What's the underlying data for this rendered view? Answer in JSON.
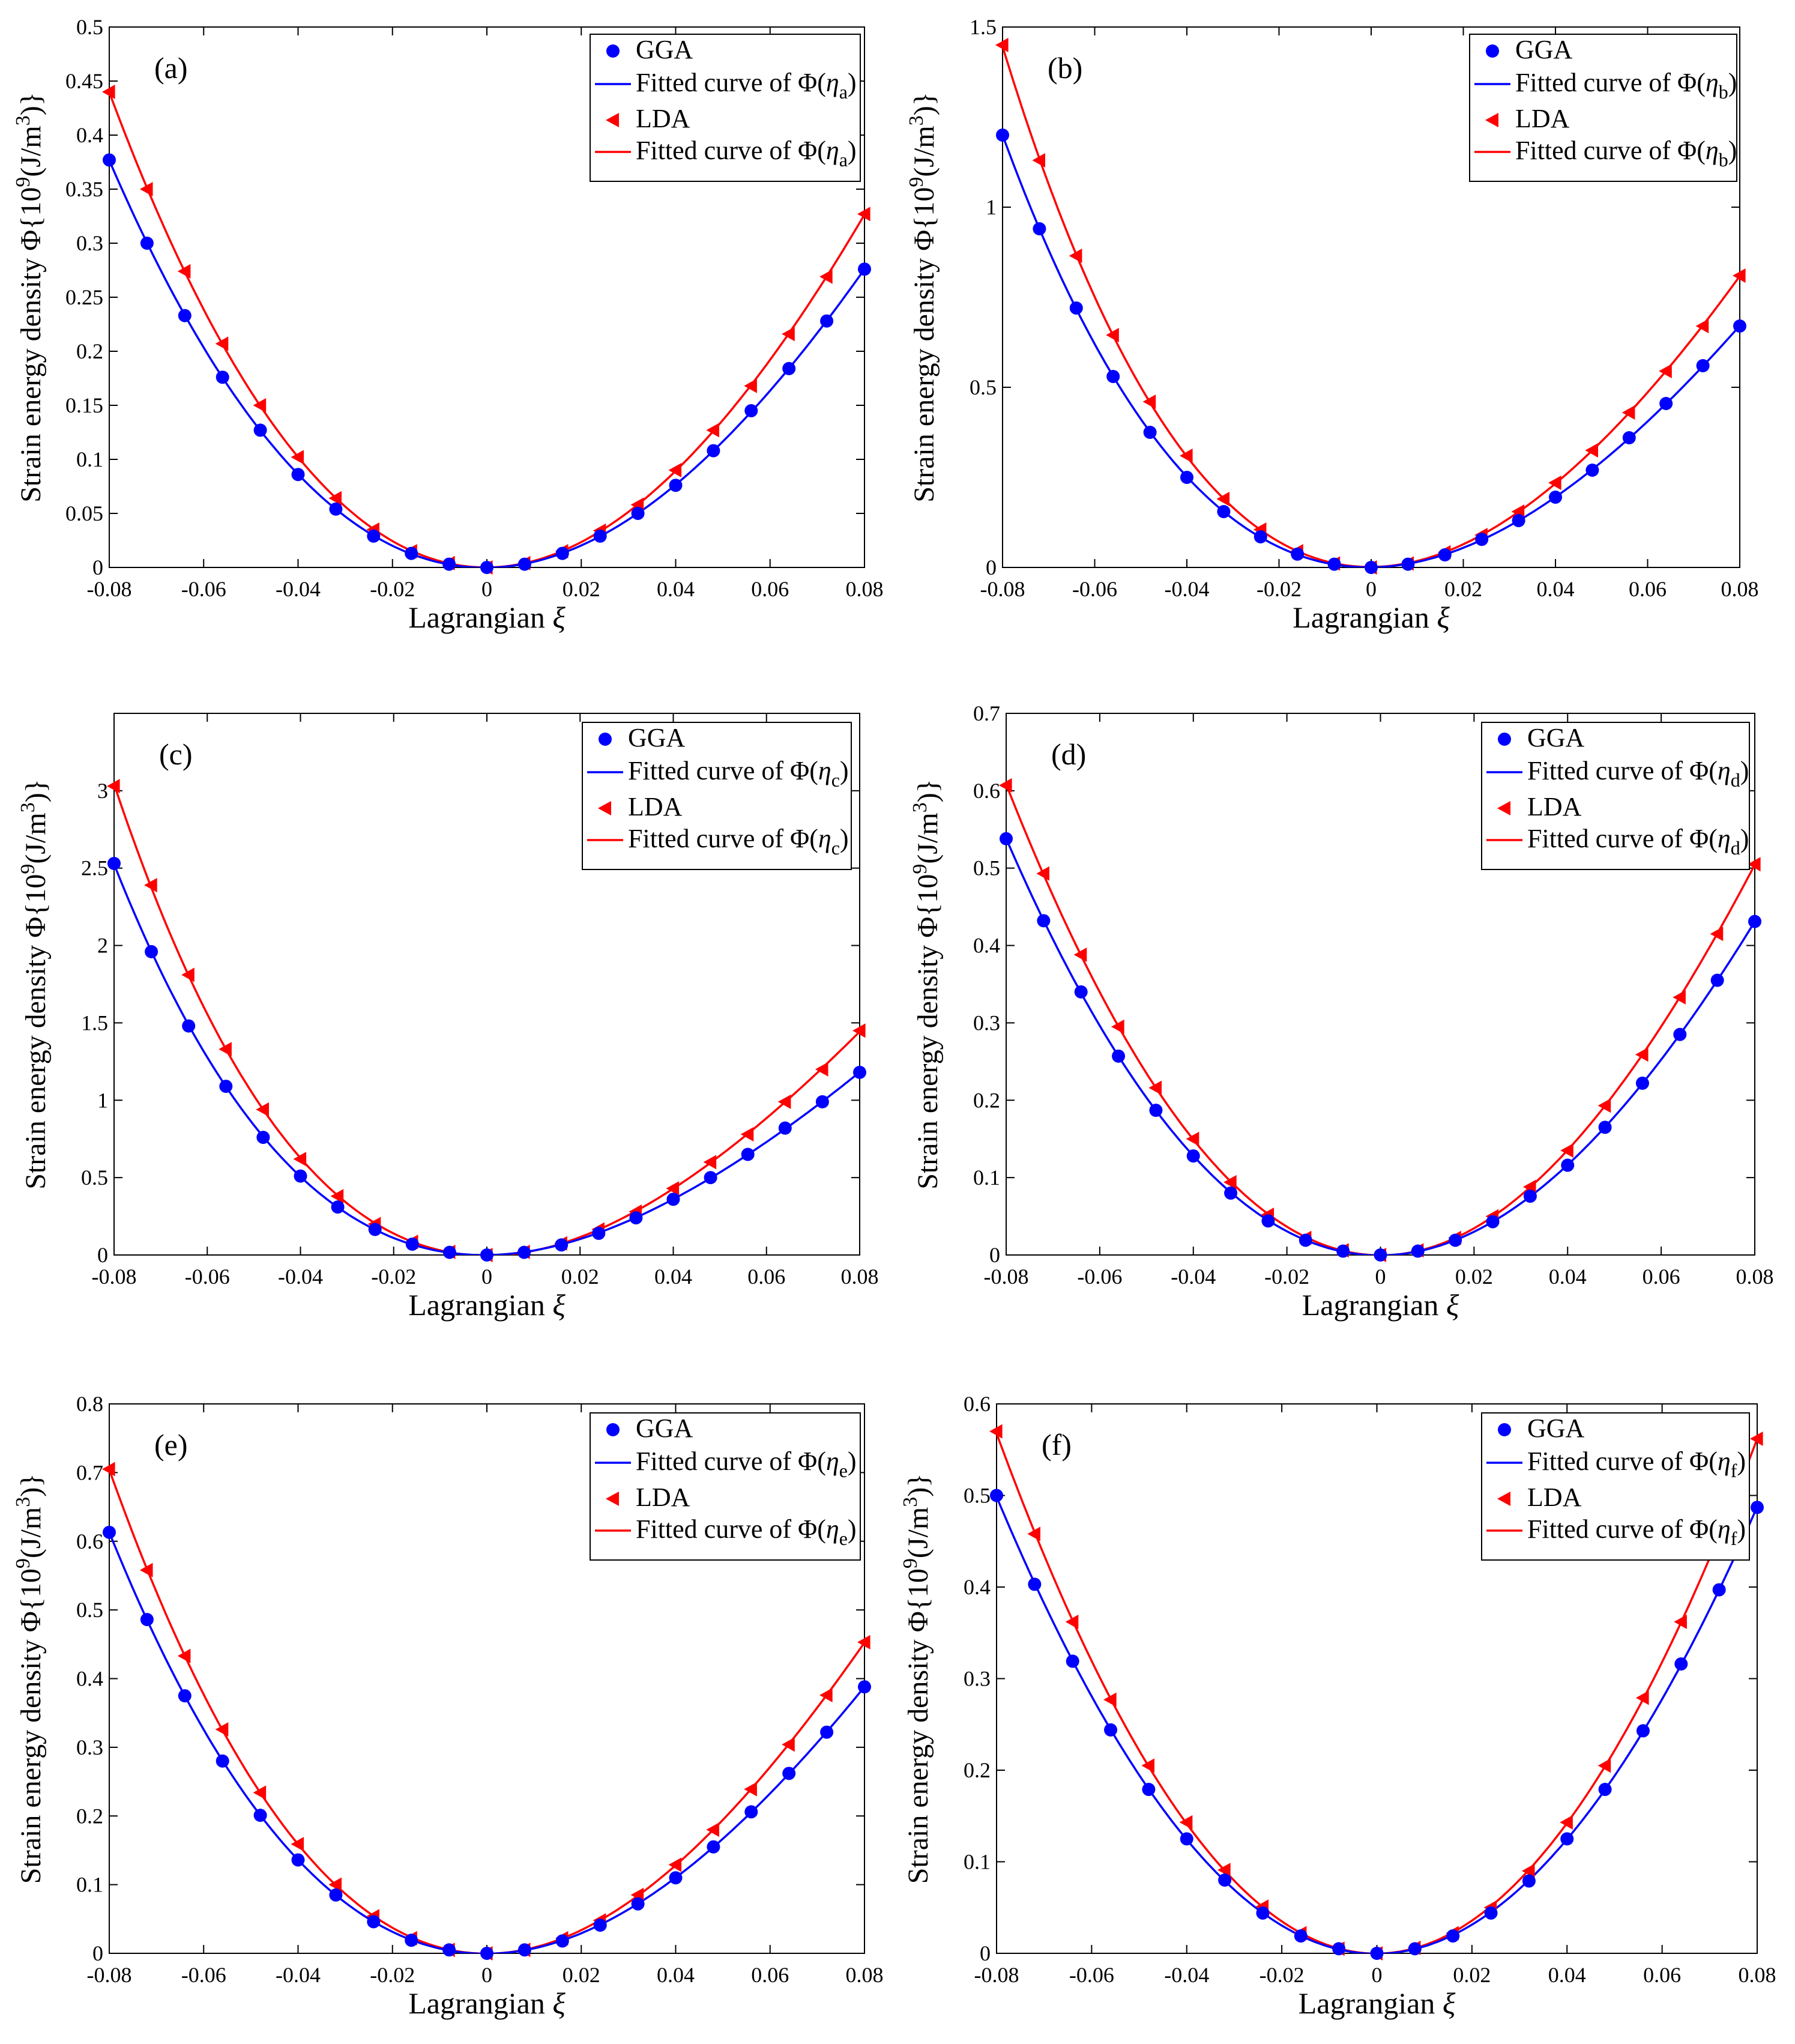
{
  "colors": {
    "gga": "#0000ff",
    "lda": "#ff0000",
    "axis": "#000000"
  },
  "icons": {
    "gga_marker": "filled-circle-marker",
    "lda_marker": "left-triangle-marker"
  },
  "chart_data": [
    {
      "type": "line",
      "id": "a",
      "panel_label": "(a)",
      "subscript": "a",
      "xlabel_main": "Lagrangian ",
      "xlabel_sym": "ξ",
      "ylabel_prefix": "Strain energy density ",
      "ylabel_unit_open": "Φ{10",
      "ylabel_exp": "9",
      "ylabel_unit_mid": "(J/m",
      "ylabel_exp2": "3",
      "ylabel_unit_close": ")}",
      "legend": {
        "gga": "GGA",
        "fit_prefix": "Fitted curve of Φ(",
        "fit_eta": "η",
        "fit_close": ")",
        "lda": "LDA"
      },
      "xlim": [
        -0.08,
        0.08
      ],
      "ylim": [
        0,
        0.5
      ],
      "xticks": [
        -0.08,
        -0.06,
        -0.04,
        -0.02,
        0,
        0.02,
        0.04,
        0.06,
        0.08
      ],
      "xtick_labels": [
        "-0.08",
        "-0.06",
        "-0.04",
        "-0.02",
        "0",
        "0.02",
        "0.04",
        "0.06",
        "0.08"
      ],
      "yticks": [
        0,
        0.05,
        0.1,
        0.15,
        0.2,
        0.25,
        0.3,
        0.35,
        0.4,
        0.45,
        0.5
      ],
      "ytick_labels": [
        "0",
        "0.05",
        "0.1",
        "0.15",
        "0.2",
        "0.25",
        "0.3",
        "0.35",
        "0.4",
        "0.45",
        "0.5"
      ],
      "x": [
        -0.08,
        -0.072,
        -0.064,
        -0.056,
        -0.048,
        -0.04,
        -0.032,
        -0.024,
        -0.016,
        -0.008,
        0,
        0.008,
        0.016,
        0.024,
        0.032,
        0.04,
        0.048,
        0.056,
        0.064,
        0.072,
        0.08
      ],
      "series": [
        {
          "name": "GGA",
          "values": [
            0.377,
            0.3,
            0.233,
            0.176,
            0.127,
            0.086,
            0.054,
            0.029,
            0.013,
            0.003,
            0,
            0.003,
            0.013,
            0.029,
            0.05,
            0.076,
            0.108,
            0.145,
            0.184,
            0.228,
            0.276
          ]
        },
        {
          "name": "LDA",
          "values": [
            0.44,
            0.35,
            0.274,
            0.207,
            0.15,
            0.102,
            0.064,
            0.035,
            0.015,
            0.004,
            0,
            0.004,
            0.015,
            0.034,
            0.058,
            0.09,
            0.127,
            0.168,
            0.216,
            0.269,
            0.327
          ]
        }
      ]
    },
    {
      "type": "line",
      "id": "b",
      "panel_label": "(b)",
      "subscript": "b",
      "xlabel_main": "Lagrangian ",
      "xlabel_sym": "ξ",
      "ylabel_prefix": "Strain energy density ",
      "ylabel_unit_open": "Φ{10",
      "ylabel_exp": "9",
      "ylabel_unit_mid": "(J/m",
      "ylabel_exp2": "3",
      "ylabel_unit_close": ")}",
      "legend": {
        "gga": "GGA",
        "fit_prefix": "Fitted curve of Φ(",
        "fit_eta": "η",
        "fit_close": ")",
        "lda": "LDA"
      },
      "xlim": [
        -0.08,
        0.08
      ],
      "ylim": [
        0,
        1.5
      ],
      "xticks": [
        -0.08,
        -0.06,
        -0.04,
        -0.02,
        0,
        0.02,
        0.04,
        0.06,
        0.08
      ],
      "xtick_labels": [
        "-0.08",
        "-0.06",
        "-0.04",
        "-0.02",
        "0",
        "0.02",
        "0.04",
        "0.06",
        "0.08"
      ],
      "yticks": [
        0,
        0.5,
        1,
        1.5
      ],
      "ytick_labels": [
        "0",
        "0.5",
        "1",
        "1.5"
      ],
      "x": [
        -0.08,
        -0.072,
        -0.064,
        -0.056,
        -0.048,
        -0.04,
        -0.032,
        -0.024,
        -0.016,
        -0.008,
        0,
        0.008,
        0.016,
        0.024,
        0.032,
        0.04,
        0.048,
        0.056,
        0.064,
        0.072,
        0.08
      ],
      "series": [
        {
          "name": "GGA",
          "values": [
            1.2,
            0.94,
            0.72,
            0.53,
            0.375,
            0.25,
            0.155,
            0.085,
            0.037,
            0.009,
            0,
            0.009,
            0.035,
            0.078,
            0.13,
            0.195,
            0.27,
            0.36,
            0.455,
            0.56,
            0.67
          ]
        },
        {
          "name": "LDA",
          "values": [
            1.45,
            1.13,
            0.865,
            0.645,
            0.46,
            0.31,
            0.19,
            0.105,
            0.045,
            0.011,
            0,
            0.011,
            0.042,
            0.09,
            0.155,
            0.235,
            0.325,
            0.43,
            0.545,
            0.67,
            0.81
          ]
        }
      ]
    },
    {
      "type": "line",
      "id": "c",
      "panel_label": "(c)",
      "subscript": "c",
      "xlabel_main": "Lagrangian ",
      "xlabel_sym": "ξ",
      "ylabel_prefix": "Strain energy density ",
      "ylabel_unit_open": "Φ{10",
      "ylabel_exp": "9",
      "ylabel_unit_mid": "(J/m",
      "ylabel_exp2": "3",
      "ylabel_unit_close": ")}",
      "legend": {
        "gga": "GGA",
        "fit_prefix": "Fitted curve of Φ(",
        "fit_eta": "η",
        "fit_close": ")",
        "lda": "LDA"
      },
      "xlim": [
        -0.08,
        0.08
      ],
      "ylim": [
        0,
        3.5
      ],
      "xticks": [
        -0.08,
        -0.06,
        -0.04,
        -0.02,
        0,
        0.02,
        0.04,
        0.06,
        0.08
      ],
      "xtick_labels": [
        "-0.08",
        "-0.06",
        "-0.04",
        "-0.02",
        "0",
        "0.02",
        "0.04",
        "0.06",
        "0.08"
      ],
      "yticks": [
        0,
        0.5,
        1,
        1.5,
        2,
        2.5,
        3
      ],
      "ytick_labels": [
        "0",
        "0.5",
        "1",
        "1.5",
        "2",
        "2.5",
        "3"
      ],
      "x": [
        -0.08,
        -0.072,
        -0.064,
        -0.056,
        -0.048,
        -0.04,
        -0.032,
        -0.024,
        -0.016,
        -0.008,
        0,
        0.008,
        0.016,
        0.024,
        0.032,
        0.04,
        0.048,
        0.056,
        0.064,
        0.072,
        0.08
      ],
      "series": [
        {
          "name": "GGA",
          "values": [
            2.53,
            1.96,
            1.48,
            1.09,
            0.76,
            0.51,
            0.31,
            0.165,
            0.07,
            0.017,
            0,
            0.017,
            0.065,
            0.14,
            0.24,
            0.36,
            0.5,
            0.65,
            0.82,
            0.99,
            1.18
          ]
        },
        {
          "name": "LDA",
          "values": [
            3.03,
            2.39,
            1.81,
            1.33,
            0.94,
            0.62,
            0.38,
            0.2,
            0.085,
            0.02,
            0,
            0.02,
            0.075,
            0.165,
            0.28,
            0.43,
            0.6,
            0.78,
            0.99,
            1.2,
            1.45
          ]
        }
      ]
    },
    {
      "type": "line",
      "id": "d",
      "panel_label": "(d)",
      "subscript": "d",
      "xlabel_main": "Lagrangian ",
      "xlabel_sym": "ξ",
      "ylabel_prefix": "Strain energy density ",
      "ylabel_unit_open": "Φ{10",
      "ylabel_exp": "9",
      "ylabel_unit_mid": "(J/m",
      "ylabel_exp2": "3",
      "ylabel_unit_close": ")}",
      "legend": {
        "gga": "GGA",
        "fit_prefix": "Fitted curve of Φ(",
        "fit_eta": "η",
        "fit_close": ")",
        "lda": "LDA"
      },
      "xlim": [
        -0.08,
        0.08
      ],
      "ylim": [
        0,
        0.7
      ],
      "xticks": [
        -0.08,
        -0.06,
        -0.04,
        -0.02,
        0,
        0.02,
        0.04,
        0.06,
        0.08
      ],
      "xtick_labels": [
        "-0.08",
        "-0.06",
        "-0.04",
        "-0.02",
        "0",
        "0.02",
        "0.04",
        "0.06",
        "0.08"
      ],
      "yticks": [
        0,
        0.1,
        0.2,
        0.3,
        0.4,
        0.5,
        0.6,
        0.7
      ],
      "ytick_labels": [
        "0",
        "0.1",
        "0.2",
        "0.3",
        "0.4",
        "0.5",
        "0.6",
        "0.7"
      ],
      "x": [
        -0.08,
        -0.072,
        -0.064,
        -0.056,
        -0.048,
        -0.04,
        -0.032,
        -0.024,
        -0.016,
        -0.008,
        0,
        0.008,
        0.016,
        0.024,
        0.032,
        0.04,
        0.048,
        0.056,
        0.064,
        0.072,
        0.08
      ],
      "series": [
        {
          "name": "GGA",
          "values": [
            0.538,
            0.432,
            0.34,
            0.257,
            0.187,
            0.128,
            0.08,
            0.044,
            0.019,
            0.005,
            0,
            0.005,
            0.019,
            0.043,
            0.076,
            0.116,
            0.165,
            0.222,
            0.285,
            0.355,
            0.431
          ]
        },
        {
          "name": "LDA",
          "values": [
            0.607,
            0.493,
            0.388,
            0.295,
            0.216,
            0.15,
            0.094,
            0.052,
            0.022,
            0.006,
            0,
            0.006,
            0.022,
            0.05,
            0.088,
            0.135,
            0.193,
            0.259,
            0.333,
            0.415,
            0.505
          ]
        }
      ]
    },
    {
      "type": "line",
      "id": "e",
      "panel_label": "(e)",
      "subscript": "e",
      "xlabel_main": "Lagrangian ",
      "xlabel_sym": "ξ",
      "ylabel_prefix": "Strain energy density ",
      "ylabel_unit_open": "Φ{10",
      "ylabel_exp": "9",
      "ylabel_unit_mid": "(J/m",
      "ylabel_exp2": "3",
      "ylabel_unit_close": ")}",
      "legend": {
        "gga": "GGA",
        "fit_prefix": "Fitted curve of Φ(",
        "fit_eta": "η",
        "fit_close": ")",
        "lda": "LDA"
      },
      "xlim": [
        -0.08,
        0.08
      ],
      "ylim": [
        0,
        0.8
      ],
      "xticks": [
        -0.08,
        -0.06,
        -0.04,
        -0.02,
        0,
        0.02,
        0.04,
        0.06,
        0.08
      ],
      "xtick_labels": [
        "-0.08",
        "-0.06",
        "-0.04",
        "-0.02",
        "0",
        "0.02",
        "0.04",
        "0.06",
        "0.08"
      ],
      "yticks": [
        0,
        0.1,
        0.2,
        0.3,
        0.4,
        0.5,
        0.6,
        0.7,
        0.8
      ],
      "ytick_labels": [
        "0",
        "0.1",
        "0.2",
        "0.3",
        "0.4",
        "0.5",
        "0.6",
        "0.7",
        "0.8"
      ],
      "x": [
        -0.08,
        -0.072,
        -0.064,
        -0.056,
        -0.048,
        -0.04,
        -0.032,
        -0.024,
        -0.016,
        -0.008,
        0,
        0.008,
        0.016,
        0.024,
        0.032,
        0.04,
        0.048,
        0.056,
        0.064,
        0.072,
        0.08
      ],
      "series": [
        {
          "name": "GGA",
          "values": [
            0.613,
            0.486,
            0.375,
            0.28,
            0.201,
            0.136,
            0.085,
            0.046,
            0.019,
            0.005,
            0,
            0.005,
            0.018,
            0.041,
            0.072,
            0.11,
            0.155,
            0.206,
            0.262,
            0.322,
            0.388
          ]
        },
        {
          "name": "LDA",
          "values": [
            0.705,
            0.558,
            0.433,
            0.326,
            0.234,
            0.159,
            0.1,
            0.054,
            0.022,
            0.005,
            0,
            0.005,
            0.022,
            0.048,
            0.085,
            0.129,
            0.18,
            0.239,
            0.304,
            0.376,
            0.453
          ]
        }
      ]
    },
    {
      "type": "line",
      "id": "f",
      "panel_label": "(f)",
      "subscript": "f",
      "xlabel_main": "Lagrangian ",
      "xlabel_sym": "ξ",
      "ylabel_prefix": "Strain energy density ",
      "ylabel_unit_open": "Φ{10",
      "ylabel_exp": "9",
      "ylabel_unit_mid": "(J/m",
      "ylabel_exp2": "3",
      "ylabel_unit_close": ")}",
      "legend": {
        "gga": "GGA",
        "fit_prefix": "Fitted curve of Φ(",
        "fit_eta": "η",
        "fit_close": ")",
        "lda": "LDA"
      },
      "xlim": [
        -0.08,
        0.08
      ],
      "ylim": [
        0,
        0.6
      ],
      "xticks": [
        -0.08,
        -0.06,
        -0.04,
        -0.02,
        0,
        0.02,
        0.04,
        0.06,
        0.08
      ],
      "xtick_labels": [
        "-0.08",
        "-0.06",
        "-0.04",
        "-0.02",
        "0",
        "0.02",
        "0.04",
        "0.06",
        "0.08"
      ],
      "yticks": [
        0,
        0.1,
        0.2,
        0.3,
        0.4,
        0.5,
        0.6
      ],
      "ytick_labels": [
        "0",
        "0.1",
        "0.2",
        "0.3",
        "0.4",
        "0.5",
        "0.6"
      ],
      "x": [
        -0.08,
        -0.072,
        -0.064,
        -0.056,
        -0.048,
        -0.04,
        -0.032,
        -0.024,
        -0.016,
        -0.008,
        0,
        0.008,
        0.016,
        0.024,
        0.032,
        0.04,
        0.048,
        0.056,
        0.064,
        0.072,
        0.08
      ],
      "series": [
        {
          "name": "GGA",
          "values": [
            0.5,
            0.403,
            0.319,
            0.244,
            0.179,
            0.125,
            0.08,
            0.044,
            0.019,
            0.005,
            0,
            0.005,
            0.019,
            0.044,
            0.079,
            0.125,
            0.179,
            0.243,
            0.316,
            0.397,
            0.487
          ]
        },
        {
          "name": "LDA",
          "values": [
            0.57,
            0.458,
            0.362,
            0.277,
            0.205,
            0.143,
            0.091,
            0.051,
            0.022,
            0.005,
            0,
            0.006,
            0.022,
            0.05,
            0.09,
            0.143,
            0.205,
            0.279,
            0.362,
            0.455,
            0.562
          ]
        }
      ]
    }
  ]
}
